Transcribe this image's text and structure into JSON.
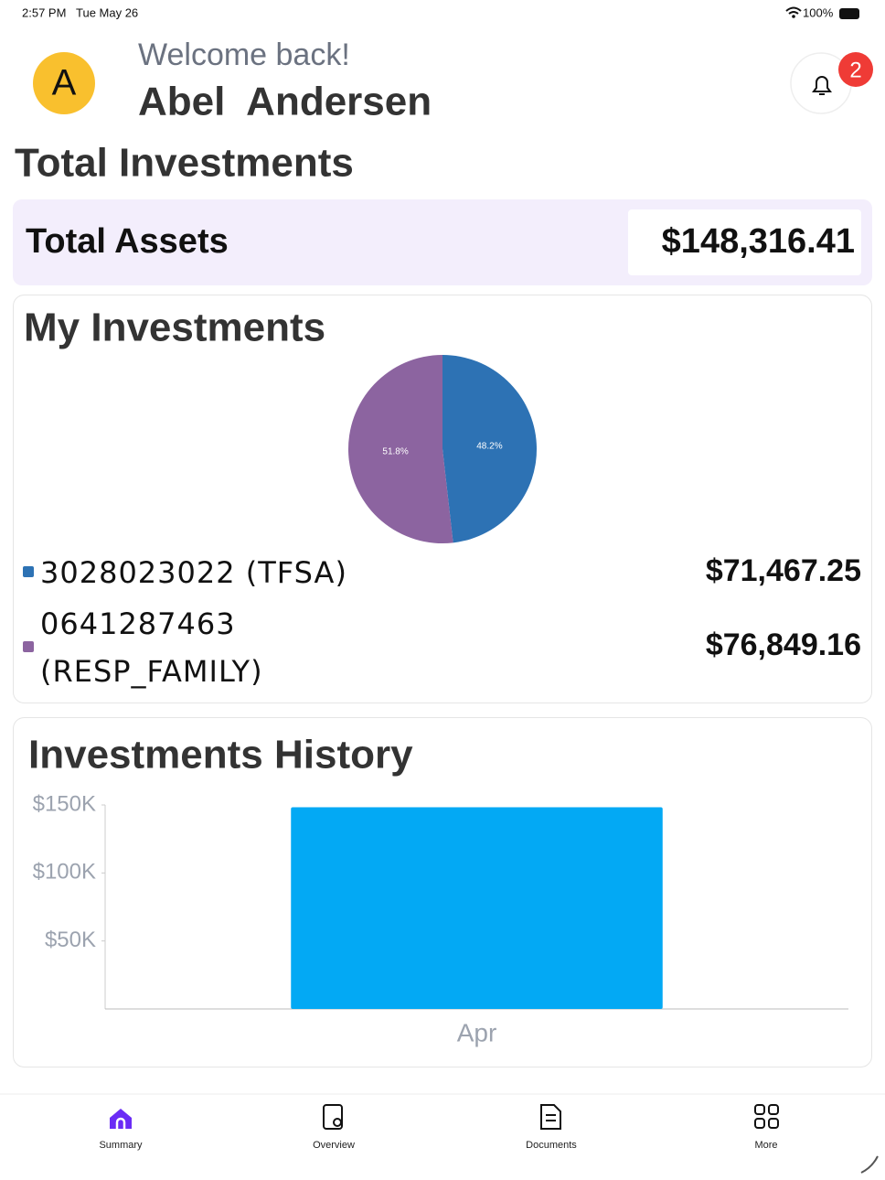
{
  "status_bar": {
    "time": "2:57 PM",
    "date": "Tue May 26",
    "battery": "100%"
  },
  "header": {
    "avatar": "A",
    "welcome": "Welcome back!",
    "name": "Abel  Andersen",
    "notification_count": "2"
  },
  "section_title": "Total Investments",
  "total_assets": {
    "label": "Total Assets",
    "value": "$148,316.41"
  },
  "my_investments": {
    "title": "My Investments",
    "chart": {
      "type": "pie",
      "categories": [
        "3028023022 (TFSA)",
        "0641287463 (RESP_FAMILY)"
      ],
      "values": [
        48.2,
        51.8
      ],
      "value_labels": [
        "48.2%",
        "51.8%"
      ],
      "colors": [
        "#2d72b4",
        "#8c64a0"
      ]
    },
    "amounts": [
      "$71,467.25",
      "$76,849.16"
    ]
  },
  "history": {
    "title": "Investments History",
    "chart": {
      "type": "bar",
      "categories": [
        "Apr"
      ],
      "values": [
        148316.41
      ],
      "color": "#03a9f4",
      "ylim": [
        0,
        150000
      ],
      "yticks": [
        {
          "value": 50000,
          "label": "$50K"
        },
        {
          "value": 100000,
          "label": "$100K"
        },
        {
          "value": 150000,
          "label": "$150K"
        }
      ]
    }
  },
  "nav": [
    "Summary",
    "Overview",
    "Documents",
    "More"
  ]
}
